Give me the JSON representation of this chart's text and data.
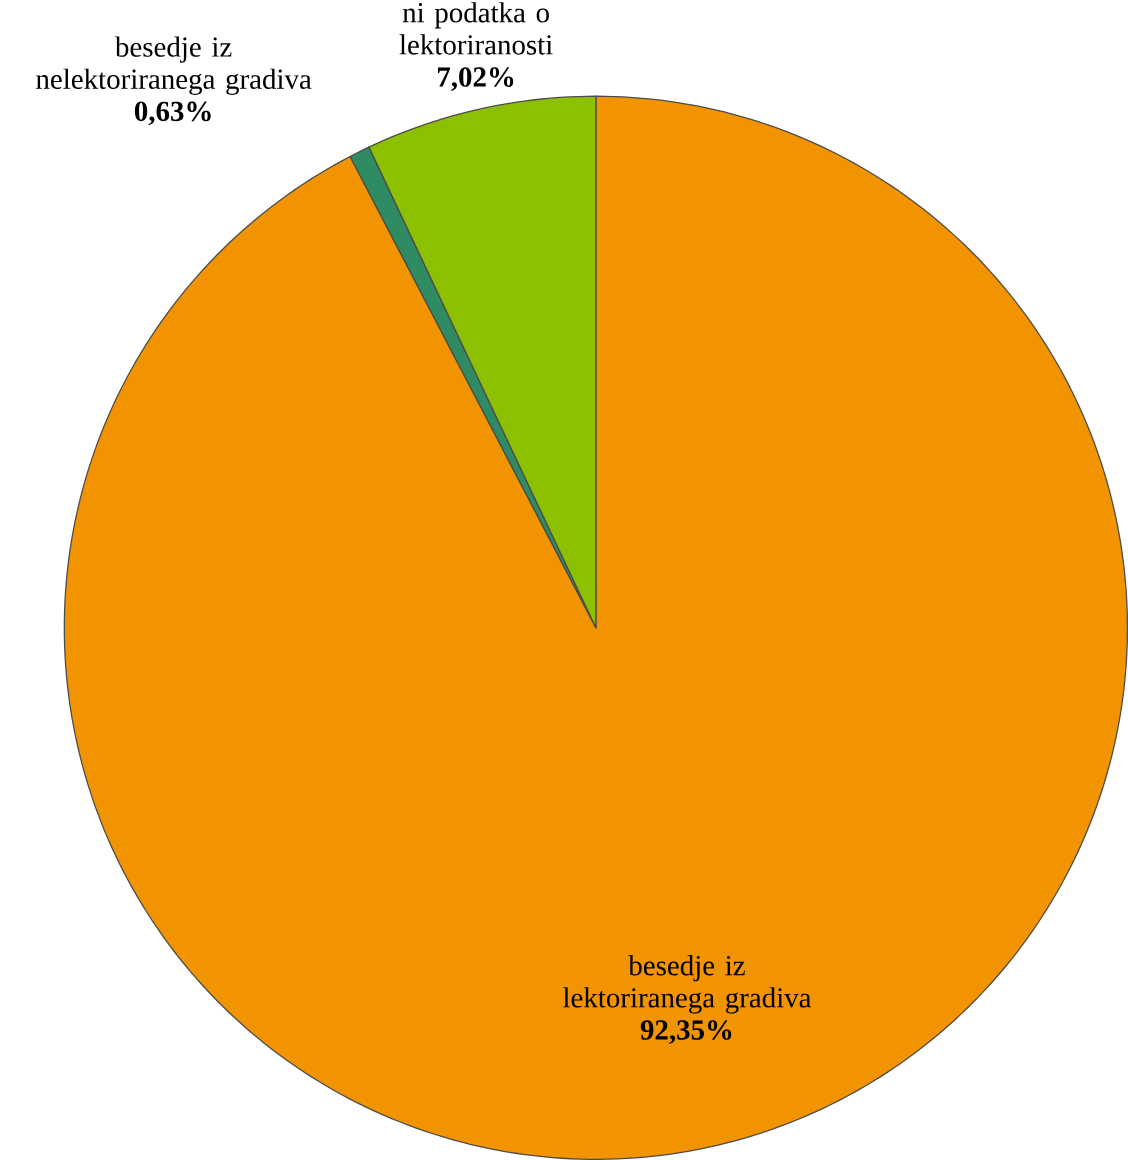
{
  "chart_data": {
    "type": "pie",
    "categories": [
      "besedje iz lektoriranega gradiva",
      "besedje iz nelektoriranega gradiva",
      "ni podatka o lektoriranosti"
    ],
    "values": [
      92.35,
      0.63,
      7.02
    ],
    "value_labels": [
      "92,35%",
      "0,63%",
      "7,02%"
    ],
    "colors": [
      "#f29400",
      "#2e8b62",
      "#8cc000"
    ]
  }
}
